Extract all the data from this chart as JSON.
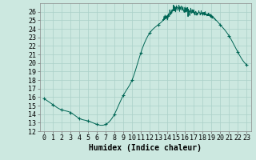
{
  "title": "",
  "xlabel": "Humidex (Indice chaleur)",
  "ylabel": "",
  "bg_color": "#cce8e0",
  "grid_color": "#aad0c8",
  "line_color": "#006655",
  "marker_color": "#006655",
  "xlim": [
    -0.5,
    23.5
  ],
  "ylim": [
    12,
    27
  ],
  "yticks": [
    12,
    13,
    14,
    15,
    16,
    17,
    18,
    19,
    20,
    21,
    22,
    23,
    24,
    25,
    26
  ],
  "xticks": [
    0,
    1,
    2,
    3,
    4,
    5,
    6,
    7,
    8,
    9,
    10,
    11,
    12,
    13,
    14,
    15,
    16,
    17,
    18,
    19,
    20,
    21,
    22,
    23
  ],
  "data_x": [
    0,
    1,
    2,
    3,
    4,
    5,
    6,
    7,
    8,
    9,
    10,
    11,
    12,
    13,
    14,
    15,
    16,
    17,
    18,
    19,
    20,
    21,
    22,
    23
  ],
  "data_y": [
    15.8,
    15.1,
    14.5,
    14.2,
    13.5,
    13.2,
    12.8,
    12.8,
    14.0,
    16.2,
    18.0,
    21.2,
    23.5,
    24.5,
    25.5,
    26.5,
    26.2,
    26.0,
    25.8,
    25.5,
    24.5,
    23.2,
    21.3,
    19.8
  ],
  "noise_seed": 42,
  "label_fontsize": 7,
  "tick_fontsize": 6
}
